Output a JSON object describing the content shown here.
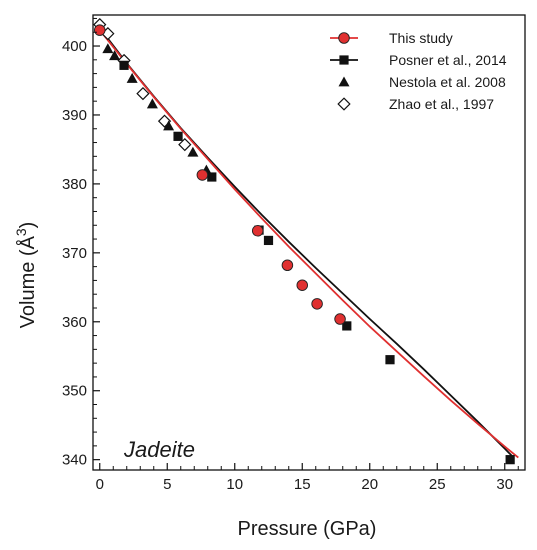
{
  "chart_data": {
    "type": "scatter",
    "xlabel": "Pressure (GPa)",
    "ylabel": "Volume (Å",
    "ylabel_superscript": "3",
    "ylabel_close": ")",
    "xlim": [
      -0.5,
      31.5
    ],
    "ylim": [
      338.5,
      404.5
    ],
    "x_ticks": [
      0,
      5,
      10,
      15,
      20,
      25,
      30
    ],
    "y_ticks": [
      340,
      350,
      360,
      370,
      380,
      390,
      400
    ],
    "grid": false,
    "legend_position": "top-right",
    "annotation": "Jadeite",
    "series": [
      {
        "name": "This study",
        "marker": "circle",
        "color": "#e03030",
        "fit_color": "#e03030",
        "points": [
          [
            0,
            402.3
          ],
          [
            7.6,
            381.3
          ],
          [
            11.7,
            373.2
          ],
          [
            13.9,
            368.2
          ],
          [
            15.0,
            365.3
          ],
          [
            16.1,
            362.6
          ],
          [
            17.8,
            360.4
          ]
        ],
        "fit": [
          [
            0,
            402.3
          ],
          [
            2,
            397.4
          ],
          [
            4,
            392.6
          ],
          [
            6,
            388.0
          ],
          [
            8,
            383.6
          ],
          [
            10,
            379.2
          ],
          [
            12,
            375.0
          ],
          [
            14,
            370.9
          ],
          [
            16,
            367.0
          ],
          [
            18,
            363.1
          ],
          [
            20,
            359.3
          ],
          [
            22,
            355.7
          ],
          [
            24,
            352.1
          ],
          [
            26,
            348.6
          ],
          [
            28,
            345.2
          ],
          [
            30,
            341.9
          ],
          [
            31,
            340.3
          ]
        ]
      },
      {
        "name": "Posner et al., 2014",
        "marker": "square",
        "color": "#111111",
        "fit_color": "#111111",
        "points": [
          [
            1.8,
            397.2
          ],
          [
            5.8,
            386.9
          ],
          [
            8.3,
            381.0
          ],
          [
            11.8,
            373.3
          ],
          [
            12.5,
            371.8
          ],
          [
            18.3,
            359.4
          ],
          [
            21.5,
            354.5
          ],
          [
            30.4,
            340.0
          ]
        ],
        "fit": [
          [
            0,
            402.6
          ],
          [
            2,
            397.5
          ],
          [
            4,
            392.7
          ],
          [
            6,
            388.1
          ],
          [
            8,
            383.8
          ],
          [
            10,
            379.6
          ],
          [
            12,
            375.5
          ],
          [
            14,
            371.6
          ],
          [
            16,
            367.8
          ],
          [
            18,
            364.1
          ],
          [
            20,
            360.4
          ],
          [
            22,
            356.8
          ],
          [
            24,
            353.1
          ],
          [
            26,
            349.3
          ],
          [
            28,
            345.5
          ],
          [
            30,
            341.6
          ],
          [
            30.6,
            340.4
          ]
        ]
      },
      {
        "name": "Nestola et al. 2008",
        "marker": "triangle",
        "color": "#111111",
        "points": [
          [
            0.6,
            399.6
          ],
          [
            1.1,
            398.6
          ],
          [
            2.4,
            395.3
          ],
          [
            3.9,
            391.6
          ],
          [
            5.1,
            388.4
          ],
          [
            6.9,
            384.6
          ],
          [
            7.9,
            382.0
          ]
        ]
      },
      {
        "name": "Zhao et al., 1997",
        "marker": "diamond",
        "color": "#111111",
        "points": [
          [
            0,
            403.1
          ],
          [
            0.6,
            401.8
          ],
          [
            1.8,
            397.9
          ],
          [
            3.2,
            393.1
          ],
          [
            4.8,
            389.1
          ],
          [
            6.3,
            385.7
          ]
        ]
      }
    ]
  }
}
